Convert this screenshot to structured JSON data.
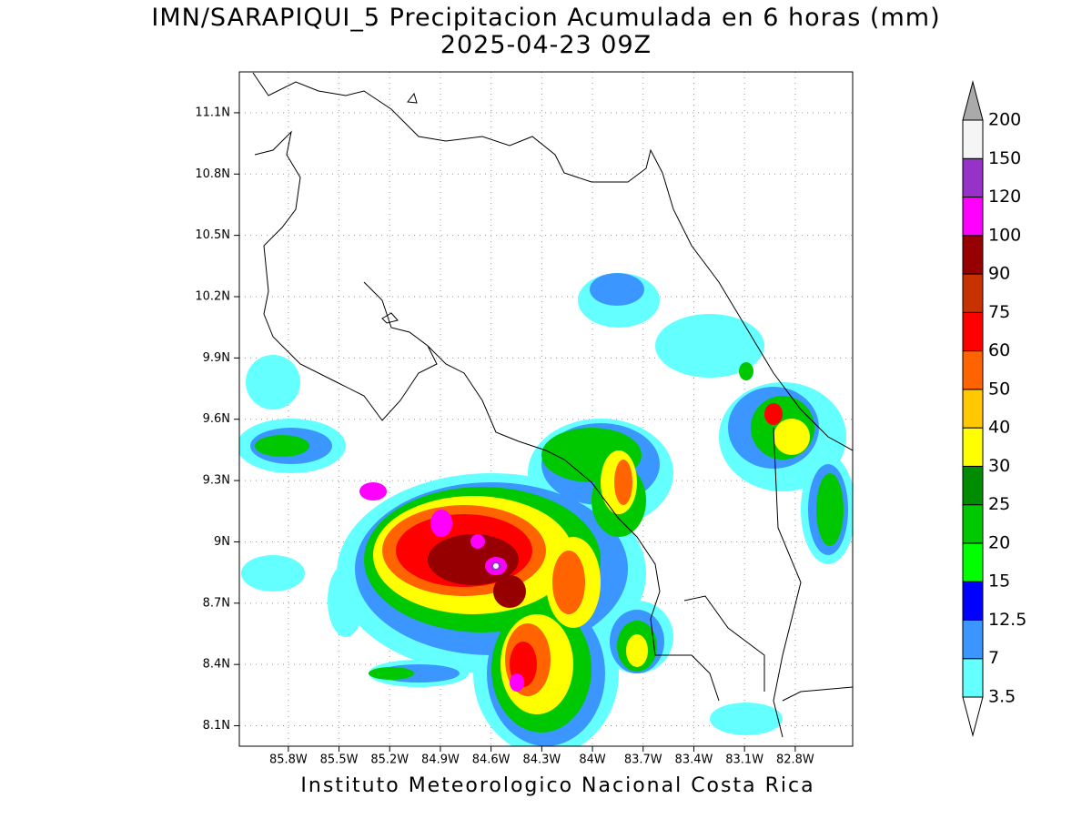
{
  "title": "IMN/SARAPIQUI_5 Precipitacion Acumulada en 6 horas (mm)",
  "subtitle": "2025-04-23 09Z",
  "footer": "Instituto Meteorologico Nacional Costa Rica",
  "map": {
    "xlim": [
      -86.09,
      -82.46
    ],
    "ylim": [
      8.0,
      11.3
    ],
    "lon_ticks": [
      {
        "value": -85.8,
        "label": "85.8W"
      },
      {
        "value": -85.5,
        "label": "85.5W"
      },
      {
        "value": -85.2,
        "label": "85.2W"
      },
      {
        "value": -84.9,
        "label": "84.9W"
      },
      {
        "value": -84.6,
        "label": "84.6W"
      },
      {
        "value": -84.3,
        "label": "84.3W"
      },
      {
        "value": -84.0,
        "label": "84W"
      },
      {
        "value": -83.7,
        "label": "83.7W"
      },
      {
        "value": -83.4,
        "label": "83.4W"
      },
      {
        "value": -83.1,
        "label": "83.1W"
      },
      {
        "value": -82.8,
        "label": "82.8W"
      }
    ],
    "lat_ticks": [
      {
        "value": 8.1,
        "label": "8.1N"
      },
      {
        "value": 8.4,
        "label": "8.4N"
      },
      {
        "value": 8.7,
        "label": "8.7N"
      },
      {
        "value": 9.0,
        "label": "9N"
      },
      {
        "value": 9.3,
        "label": "9.3N"
      },
      {
        "value": 9.6,
        "label": "9.6N"
      },
      {
        "value": 9.9,
        "label": "9.9N"
      },
      {
        "value": 10.2,
        "label": "10.2N"
      },
      {
        "value": 10.5,
        "label": "10.5N"
      },
      {
        "value": 10.8,
        "label": "10.8N"
      },
      {
        "value": 11.1,
        "label": "11.1N"
      }
    ],
    "grid": true
  },
  "colorbar": {
    "levels": [
      3.5,
      7,
      12.5,
      15,
      20,
      25,
      30,
      40,
      50,
      60,
      75,
      90,
      100,
      120,
      150,
      200
    ],
    "colors": [
      "#64ffff",
      "#3c96ff",
      "#0000ff",
      "#00ff00",
      "#00c800",
      "#008c00",
      "#ffff00",
      "#ffc800",
      "#ff6400",
      "#ff0000",
      "#c83200",
      "#960000",
      "#ff00ff",
      "#9632c8",
      "#f5f5f5"
    ],
    "under_color": "#ffffff",
    "over_color": "#aaaaaa"
  }
}
